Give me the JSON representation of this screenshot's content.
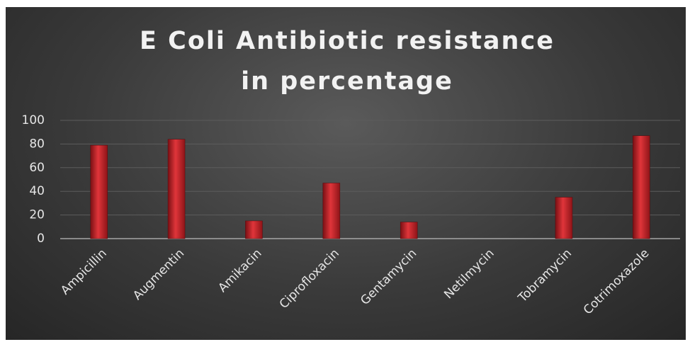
{
  "chart_data": {
    "type": "bar",
    "title": "E Coli Antibiotic resistance in percentage",
    "categories": [
      "Ampicillin",
      "Augmentin",
      "Amikacin",
      "Ciprofloxacin",
      "Gentamycin",
      "Netilmycin",
      "Tobramycin",
      "Cotrimoxazole"
    ],
    "values": [
      79,
      84,
      15,
      47,
      14,
      0,
      35,
      87
    ],
    "color": "#c0262b",
    "ylim": [
      0,
      100
    ],
    "yticks": [
      0,
      20,
      40,
      60,
      80,
      100
    ],
    "grid": true
  }
}
